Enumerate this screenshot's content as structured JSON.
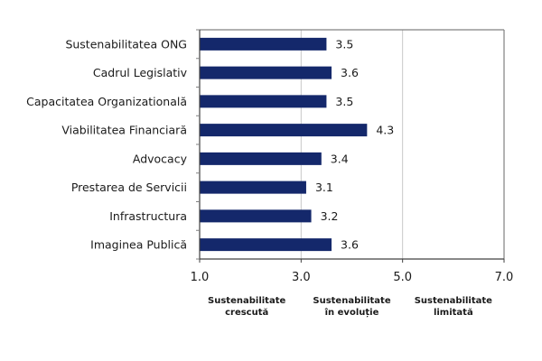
{
  "chart_data": {
    "type": "bar",
    "orientation": "horizontal",
    "title": "",
    "xlabel": "",
    "ylabel": "",
    "categories": [
      "Sustenabilitatea ONG",
      "Cadrul Legislativ",
      "Capacitatea Organizatională",
      "Viabilitatea Financiară",
      "Advocacy",
      "Prestarea de Servicii",
      "Infrastructura",
      "Imaginea Publică"
    ],
    "values": [
      3.5,
      3.6,
      3.5,
      4.3,
      3.4,
      3.1,
      3.2,
      3.6
    ],
    "value_labels": [
      "3.5",
      "3.6",
      "3.5",
      "4.3",
      "3.4",
      "3.1",
      "3.2",
      "3.6"
    ],
    "xlim": [
      1.0,
      7.0
    ],
    "x_ticks": [
      1.0,
      3.0,
      5.0,
      7.0
    ],
    "x_tick_labels": [
      "1.0",
      "3.0",
      "5.0",
      "7.0"
    ],
    "grid": true,
    "zone_labels": [
      {
        "line1": "Sustenabilitate",
        "line2": "crescută"
      },
      {
        "line1": "Sustenabilitate",
        "line2": "în evoluție"
      },
      {
        "line1": "Sustenabilitate",
        "line2": "limitată"
      }
    ],
    "colors": {
      "bar": "#14286b",
      "grid": "#c8c8c8",
      "axis": "#808080"
    }
  }
}
